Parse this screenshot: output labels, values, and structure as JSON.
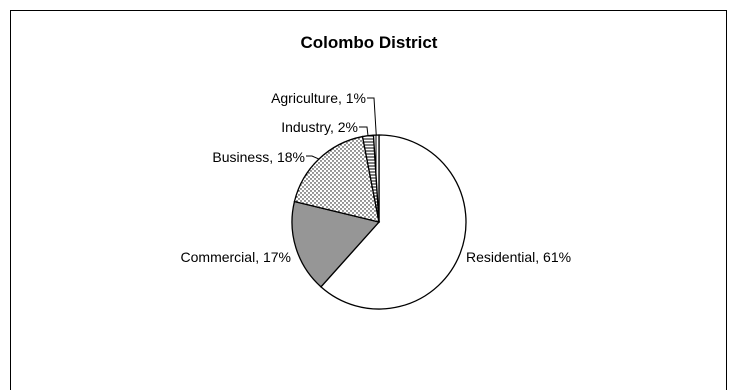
{
  "chart_data": {
    "type": "pie",
    "title": "Colombo District",
    "slices": [
      {
        "label": "Residential",
        "value": 61,
        "display": "Residential, 61%",
        "fill": "white"
      },
      {
        "label": "Commercial",
        "value": 17,
        "display": "Commercial, 17%",
        "fill": "gray"
      },
      {
        "label": "Business",
        "value": 18,
        "display": "Business, 18%",
        "fill": "dots"
      },
      {
        "label": "Industry",
        "value": 2,
        "display": "Industry, 2%",
        "fill": "hlines"
      },
      {
        "label": "Agriculture",
        "value": 1,
        "display": "Agriculture, 1%",
        "fill": "vlines"
      }
    ],
    "colors": {
      "gray": "#969696",
      "outline": "#000000",
      "background": "#ffffff"
    }
  }
}
